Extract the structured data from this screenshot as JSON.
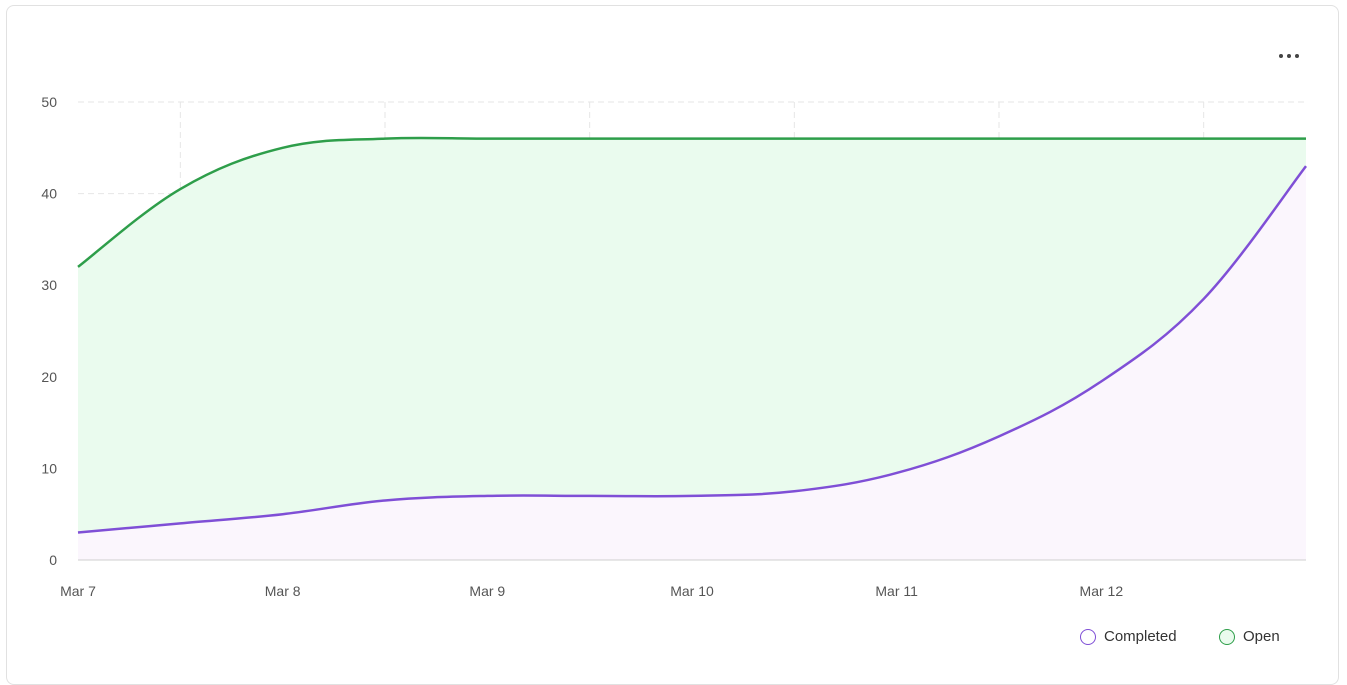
{
  "menu": {
    "icon": "more-horizontal-icon"
  },
  "chart_data": {
    "type": "area",
    "x": [
      "Mar 7",
      "Mar 7.5",
      "Mar 8",
      "Mar 8.5",
      "Mar 9",
      "Mar 9.5",
      "Mar 10",
      "Mar 10.5",
      "Mar 11",
      "Mar 11.5",
      "Mar 12",
      "Mar 12.5",
      "Mar 13"
    ],
    "x_tick_labels": [
      "Mar 7",
      "Mar 8",
      "Mar 9",
      "Mar 10",
      "Mar 11",
      "Mar 12"
    ],
    "y_tick_labels": [
      "0",
      "10",
      "20",
      "30",
      "40",
      "50"
    ],
    "ylim": [
      0,
      50
    ],
    "series": [
      {
        "name": "Open",
        "color": "#2e9e4a",
        "fill": "#eafbee",
        "values": [
          32,
          40.5,
          45,
          46,
          46,
          46,
          46,
          46,
          46,
          46,
          46,
          46,
          46
        ]
      },
      {
        "name": "Completed",
        "color": "#7f4fd6",
        "fill": "#fbf6fd",
        "values": [
          3,
          4,
          5,
          6.5,
          7,
          7,
          7,
          7.5,
          9.5,
          13.5,
          19.5,
          28.5,
          43
        ]
      }
    ],
    "grid": true,
    "legend_position": "bottom-right"
  }
}
